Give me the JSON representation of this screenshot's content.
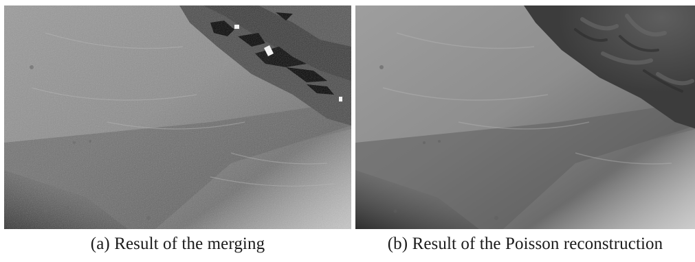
{
  "figure": {
    "subfigures": [
      {
        "label": "(a)",
        "caption": "Result of the merging",
        "image": "grayscale shaded terrain surface with rock outcrop and black holes"
      },
      {
        "label": "(b)",
        "caption": "Result of the Poisson reconstruction",
        "image": "smooth grayscale shaded terrain surface with rock outcrop"
      }
    ]
  }
}
